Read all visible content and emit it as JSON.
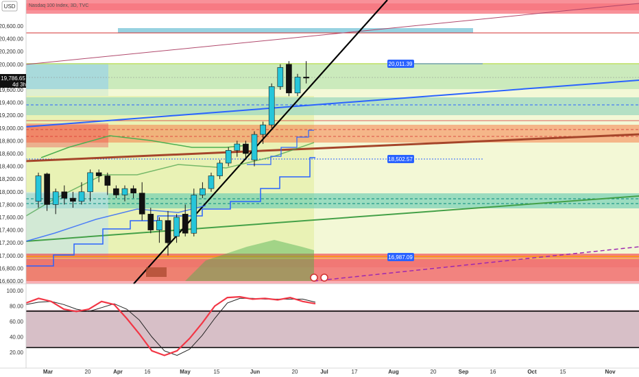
{
  "currency_label": "USD",
  "symbol_label": "Nasdaq 100 Index, 3D, TVC",
  "chart_data": {
    "type": "candlestick",
    "x_tick_labels": [
      "Mar",
      "20",
      "Apr",
      "16",
      "May",
      "15",
      "Jun",
      "20",
      "Jul",
      "17",
      "Aug",
      "20",
      "Sep",
      "16",
      "Oct",
      "15",
      "Nov"
    ],
    "price_axis": {
      "ylim": [
        16500,
        20800
      ],
      "tick_labels": [
        "20,600.00",
        "20,400.00",
        "20,200.00",
        "20,000.00",
        "19,600.00",
        "19,400.00",
        "19,200.00",
        "19,000.00",
        "18,800.00",
        "18,600.00",
        "18,400.00",
        "18,200.00",
        "18,000.00",
        "17,800.00",
        "17,600.00",
        "17,400.00",
        "17,200.00",
        "17,000.00",
        "16,800.00",
        "16,600.00"
      ]
    },
    "last_price": {
      "value": "19,786.65",
      "countdown": "4d 3h"
    },
    "price_labels": [
      "20,011.39",
      "18,502.57",
      "16,987.09"
    ],
    "candles": [
      {
        "o": 17850,
        "h": 18300,
        "l": 17750,
        "c": 18250
      },
      {
        "o": 18280,
        "h": 18300,
        "l": 17700,
        "c": 17800
      },
      {
        "o": 17800,
        "h": 18050,
        "l": 17650,
        "c": 18000
      },
      {
        "o": 18000,
        "h": 18100,
        "l": 17800,
        "c": 17900
      },
      {
        "o": 17900,
        "h": 18000,
        "l": 17750,
        "c": 17850
      },
      {
        "o": 17850,
        "h": 18150,
        "l": 17800,
        "c": 18000
      },
      {
        "o": 18000,
        "h": 18350,
        "l": 17850,
        "c": 18300
      },
      {
        "o": 18300,
        "h": 18350,
        "l": 18150,
        "c": 18250
      },
      {
        "o": 18250,
        "h": 18300,
        "l": 17950,
        "c": 18100
      },
      {
        "o": 18050,
        "h": 18100,
        "l": 17900,
        "c": 17950
      },
      {
        "o": 17950,
        "h": 18100,
        "l": 17850,
        "c": 18050
      },
      {
        "o": 18050,
        "h": 18100,
        "l": 17900,
        "c": 17980
      },
      {
        "o": 17980,
        "h": 18150,
        "l": 17550,
        "c": 17650
      },
      {
        "o": 17650,
        "h": 17750,
        "l": 17350,
        "c": 17400
      },
      {
        "o": 17400,
        "h": 17600,
        "l": 17200,
        "c": 17550
      },
      {
        "o": 17550,
        "h": 17700,
        "l": 17000,
        "c": 17200
      },
      {
        "o": 17300,
        "h": 17650,
        "l": 17200,
        "c": 17600
      },
      {
        "o": 17650,
        "h": 17800,
        "l": 17300,
        "c": 17350
      },
      {
        "o": 17350,
        "h": 18050,
        "l": 17300,
        "c": 17950
      },
      {
        "o": 17950,
        "h": 18150,
        "l": 17900,
        "c": 18050
      },
      {
        "o": 18050,
        "h": 18300,
        "l": 18000,
        "c": 18250
      },
      {
        "o": 18250,
        "h": 18500,
        "l": 18200,
        "c": 18450
      },
      {
        "o": 18450,
        "h": 18700,
        "l": 18400,
        "c": 18650
      },
      {
        "o": 18650,
        "h": 18800,
        "l": 18550,
        "c": 18750
      },
      {
        "o": 18750,
        "h": 18800,
        "l": 18500,
        "c": 18600
      },
      {
        "o": 18500,
        "h": 18950,
        "l": 18400,
        "c": 18900
      },
      {
        "o": 18900,
        "h": 19100,
        "l": 18750,
        "c": 19050
      },
      {
        "o": 19050,
        "h": 19700,
        "l": 19000,
        "c": 19650
      },
      {
        "o": 19650,
        "h": 20000,
        "l": 19600,
        "c": 19950
      },
      {
        "o": 20000,
        "h": 20050,
        "l": 19500,
        "c": 19550
      },
      {
        "o": 19550,
        "h": 19850,
        "l": 19500,
        "c": 19800
      },
      {
        "o": 19800,
        "h": 20050,
        "l": 19700,
        "c": 19786
      }
    ],
    "stoch_axis": {
      "ylim": [
        10,
        105
      ],
      "tick_labels": [
        "100.00",
        "80.00",
        "60.00",
        "40.00",
        "20.00"
      ]
    },
    "stoch_k": [
      84,
      90,
      86,
      76,
      73,
      76,
      86,
      82,
      64,
      44,
      22,
      16,
      22,
      38,
      58,
      80,
      91,
      92,
      89,
      90,
      88,
      91,
      86,
      83
    ],
    "stoch_d": [
      82,
      85,
      86,
      82,
      76,
      73,
      78,
      83,
      76,
      62,
      40,
      22,
      16,
      24,
      42,
      64,
      84,
      90,
      90,
      89,
      89,
      89,
      89,
      85
    ],
    "colors": {
      "bull": "#26c6da",
      "bear": "#111111",
      "stoch_k": "#f23645",
      "stoch_d": "#222222"
    }
  }
}
